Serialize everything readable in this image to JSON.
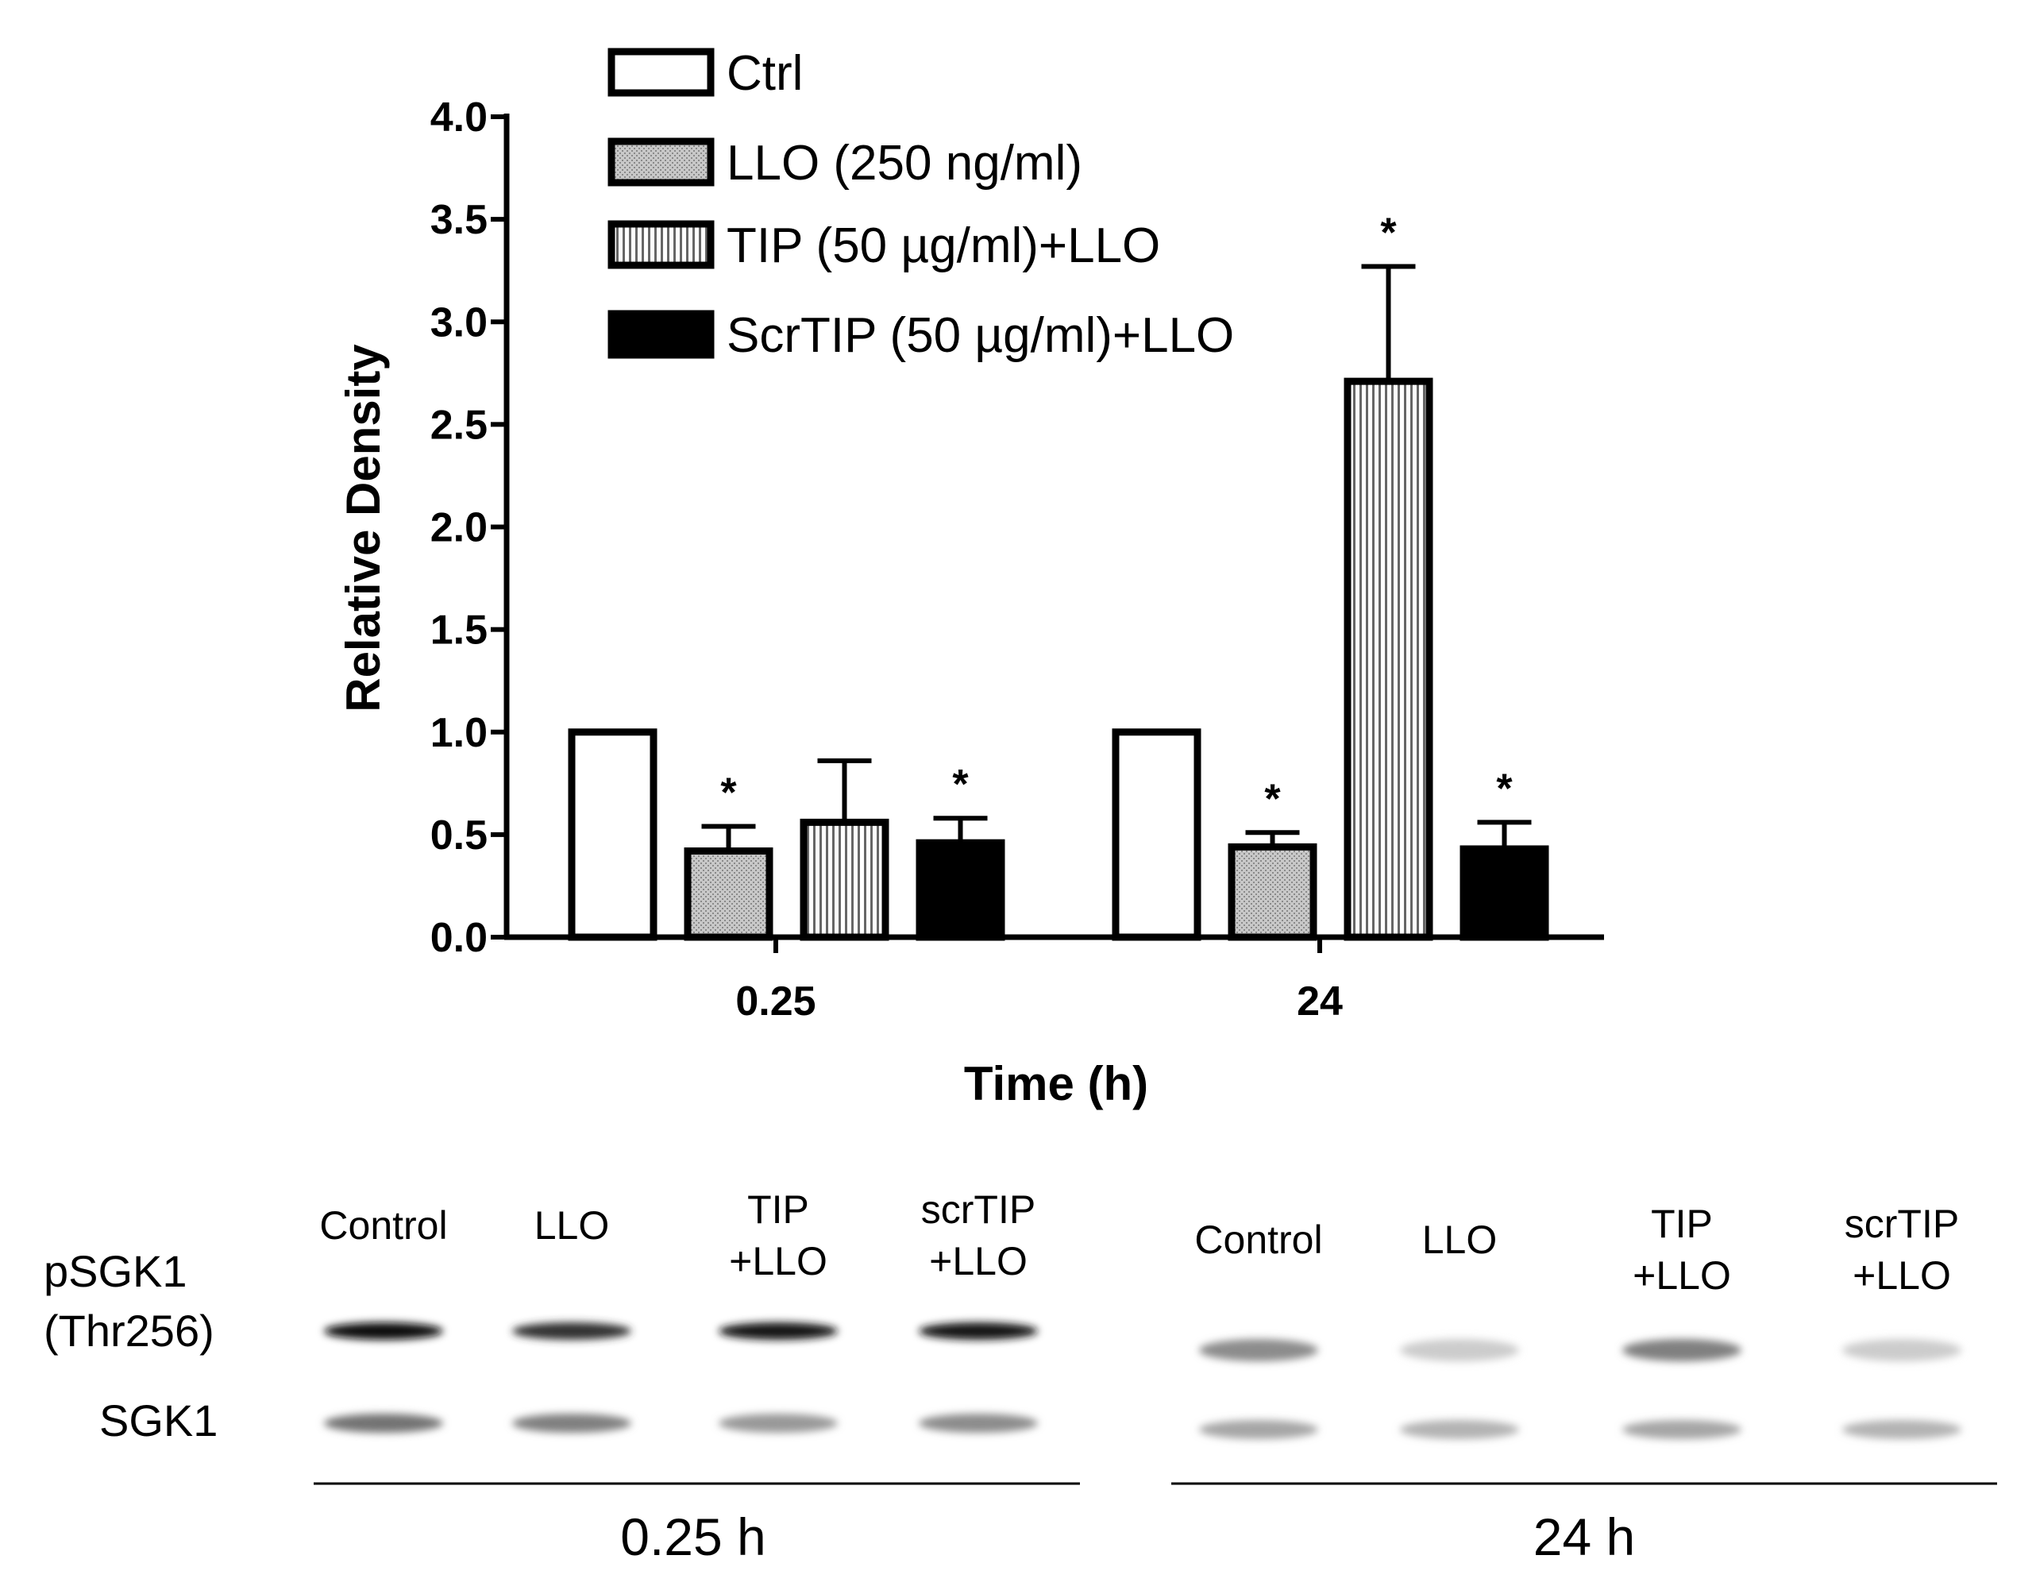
{
  "chart_data": {
    "type": "bar",
    "ylabel": "Relative Density",
    "xlabel": "Time (h)",
    "ylim": [
      0,
      4.0
    ],
    "yticks": [
      "0.0",
      "0.5",
      "1.0",
      "1.5",
      "2.0",
      "2.5",
      "3.0",
      "3.5",
      "4.0"
    ],
    "categories": [
      "0.25",
      "24"
    ],
    "series": [
      {
        "name": "Ctrl",
        "pattern": "white",
        "values": [
          1.0,
          1.0
        ],
        "errors": [
          0,
          0
        ],
        "significant": [
          false,
          false
        ]
      },
      {
        "name": "LLO (250 ng/ml)",
        "pattern": "dotted",
        "values": [
          0.42,
          0.44
        ],
        "errors": [
          0.12,
          0.07
        ],
        "significant": [
          true,
          true
        ]
      },
      {
        "name": "TIP (50 µg/ml)+LLO",
        "pattern": "vertical-lines",
        "values": [
          0.56,
          2.71
        ],
        "errors": [
          0.3,
          0.56
        ],
        "significant": [
          false,
          true
        ]
      },
      {
        "name": "ScrTIP (50 µg/ml)+LLO",
        "pattern": "black",
        "values": [
          0.46,
          0.43
        ],
        "errors": [
          0.12,
          0.13
        ],
        "significant": [
          true,
          true
        ]
      }
    ],
    "significance_marker": "*"
  },
  "blot": {
    "row_labels": [
      "pSGK1",
      "(Thr256)",
      "SGK1"
    ],
    "panels": [
      {
        "time_label": "0.25 h",
        "lanes": [
          {
            "line1": "Control",
            "line2": "",
            "p_intensity": 0.95,
            "t_intensity": 0.55
          },
          {
            "line1": "LLO",
            "line2": "",
            "p_intensity": 0.8,
            "t_intensity": 0.5
          },
          {
            "line1": "TIP",
            "line2": "+LLO",
            "p_intensity": 0.9,
            "t_intensity": 0.4
          },
          {
            "line1": "scrTIP",
            "line2": "+LLO",
            "p_intensity": 0.9,
            "t_intensity": 0.45
          }
        ]
      },
      {
        "time_label": "24 h",
        "lanes": [
          {
            "line1": "Control",
            "line2": "",
            "p_intensity": 0.45,
            "t_intensity": 0.35
          },
          {
            "line1": "LLO",
            "line2": "",
            "p_intensity": 0.2,
            "t_intensity": 0.3
          },
          {
            "line1": "TIP",
            "line2": "+LLO",
            "p_intensity": 0.5,
            "t_intensity": 0.35
          },
          {
            "line1": "scrTIP",
            "line2": "+LLO",
            "p_intensity": 0.2,
            "t_intensity": 0.3
          }
        ]
      }
    ]
  }
}
